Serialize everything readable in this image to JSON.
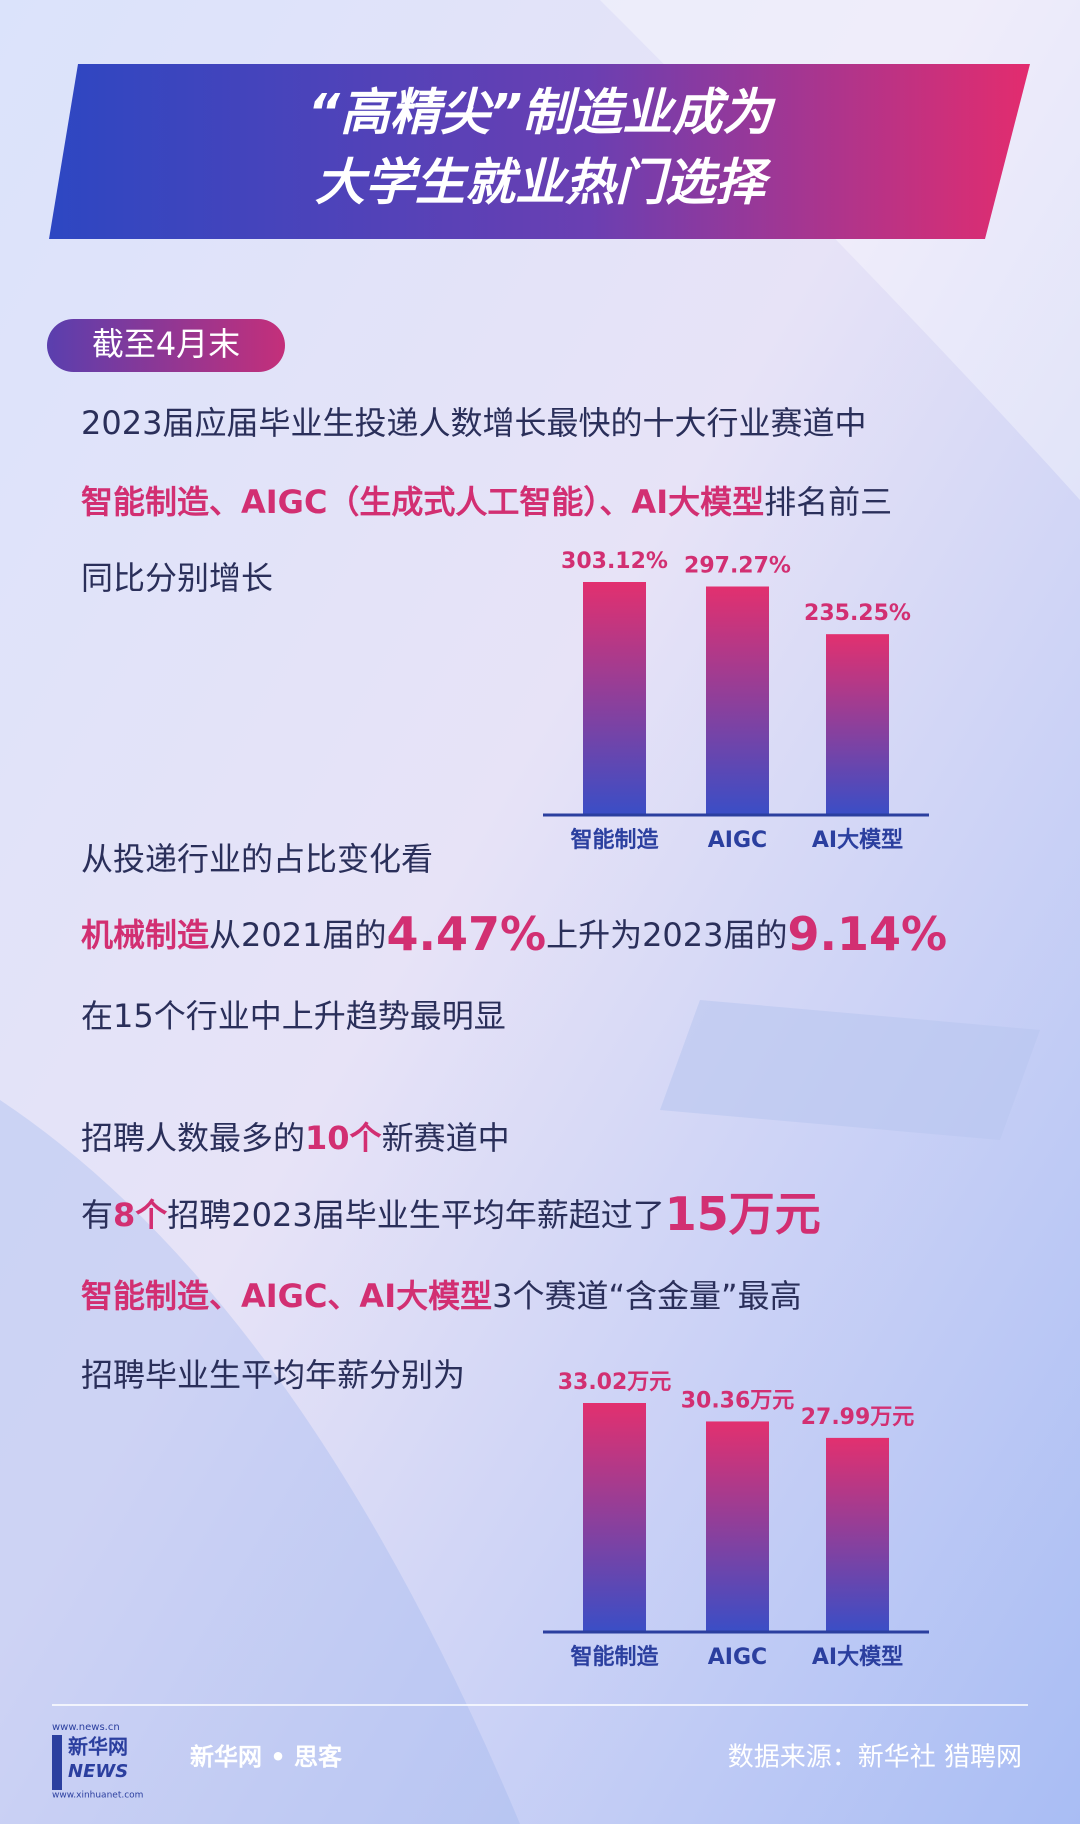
{
  "header": {
    "title": [
      "“高精尖”制造业成为",
      "大学生就业热门选择"
    ]
  },
  "date_tag": "截至4月末",
  "paragraphs": [
    [
      [
        {
          "text": "2023届应届毕业生投递人数增长最快的十大行业赛道中",
          "style": "normal"
        }
      ],
      [
        {
          "text": "智能制造、AIGC（生成式人工智能）、AI大模型",
          "style": "highlight"
        },
        {
          "text": "排名前三",
          "style": "normal"
        }
      ],
      [
        {
          "text": "同比分别增长",
          "style": "normal"
        }
      ]
    ],
    [
      [
        {
          "text": "从投递行业的占比变化看",
          "style": "normal"
        }
      ],
      [
        {
          "text": "机械制造",
          "style": "highlight"
        },
        {
          "text": "从2021届的",
          "style": "normal"
        },
        {
          "text": "4.47%",
          "style": "big"
        },
        {
          "text": "上升为2023届的",
          "style": "normal"
        },
        {
          "text": "9.14%",
          "style": "big"
        }
      ],
      [
        {
          "text": "在15个行业中上升趋势最明显",
          "style": "normal"
        }
      ]
    ],
    [
      [
        {
          "text": "招聘人数最多的",
          "style": "normal"
        },
        {
          "text": "10个",
          "style": "highlight"
        },
        {
          "text": "新赛道中",
          "style": "normal"
        }
      ],
      [
        {
          "text": "有",
          "style": "normal"
        },
        {
          "text": "8个",
          "style": "highlight"
        },
        {
          "text": "招聘2023届毕业生平均年薪超过了",
          "style": "normal"
        },
        {
          "text": "15万元",
          "style": "big"
        }
      ],
      [
        {
          "text": "智能制造、AIGC、AI大模型",
          "style": "highlight"
        },
        {
          "text": "3个赛道“含金量”最高",
          "style": "normal"
        }
      ],
      [
        {
          "text": "招聘毕业生平均年薪分别为",
          "style": "normal"
        }
      ]
    ]
  ],
  "chart_data": [
    {
      "type": "bar",
      "categories": [
        "智能制造",
        "AIGC",
        "AI大模型"
      ],
      "values": [
        303.12,
        297.27,
        235.25
      ],
      "value_labels": [
        "303.12%",
        "297.27%",
        "235.25%"
      ],
      "gradient": [
        "#e2306f",
        "#3a4ec6"
      ]
    },
    {
      "type": "bar",
      "categories": [
        "智能制造",
        "AIGC",
        "AI大模型"
      ],
      "values": [
        33.02,
        30.36,
        27.99
      ],
      "value_labels": [
        "33.02万元",
        "30.36万元",
        "27.99万元"
      ],
      "gradient": [
        "#e2306f",
        "#3a4ec6"
      ]
    }
  ],
  "footer": {
    "logo_url": "www.news.cn",
    "logo_name": "新华网",
    "logo_news": "NEWS",
    "logo_url2": "www.xinhuanet.com",
    "brand": "新华网 • 思客",
    "source": "数据来源：新华社 猎聘网"
  }
}
